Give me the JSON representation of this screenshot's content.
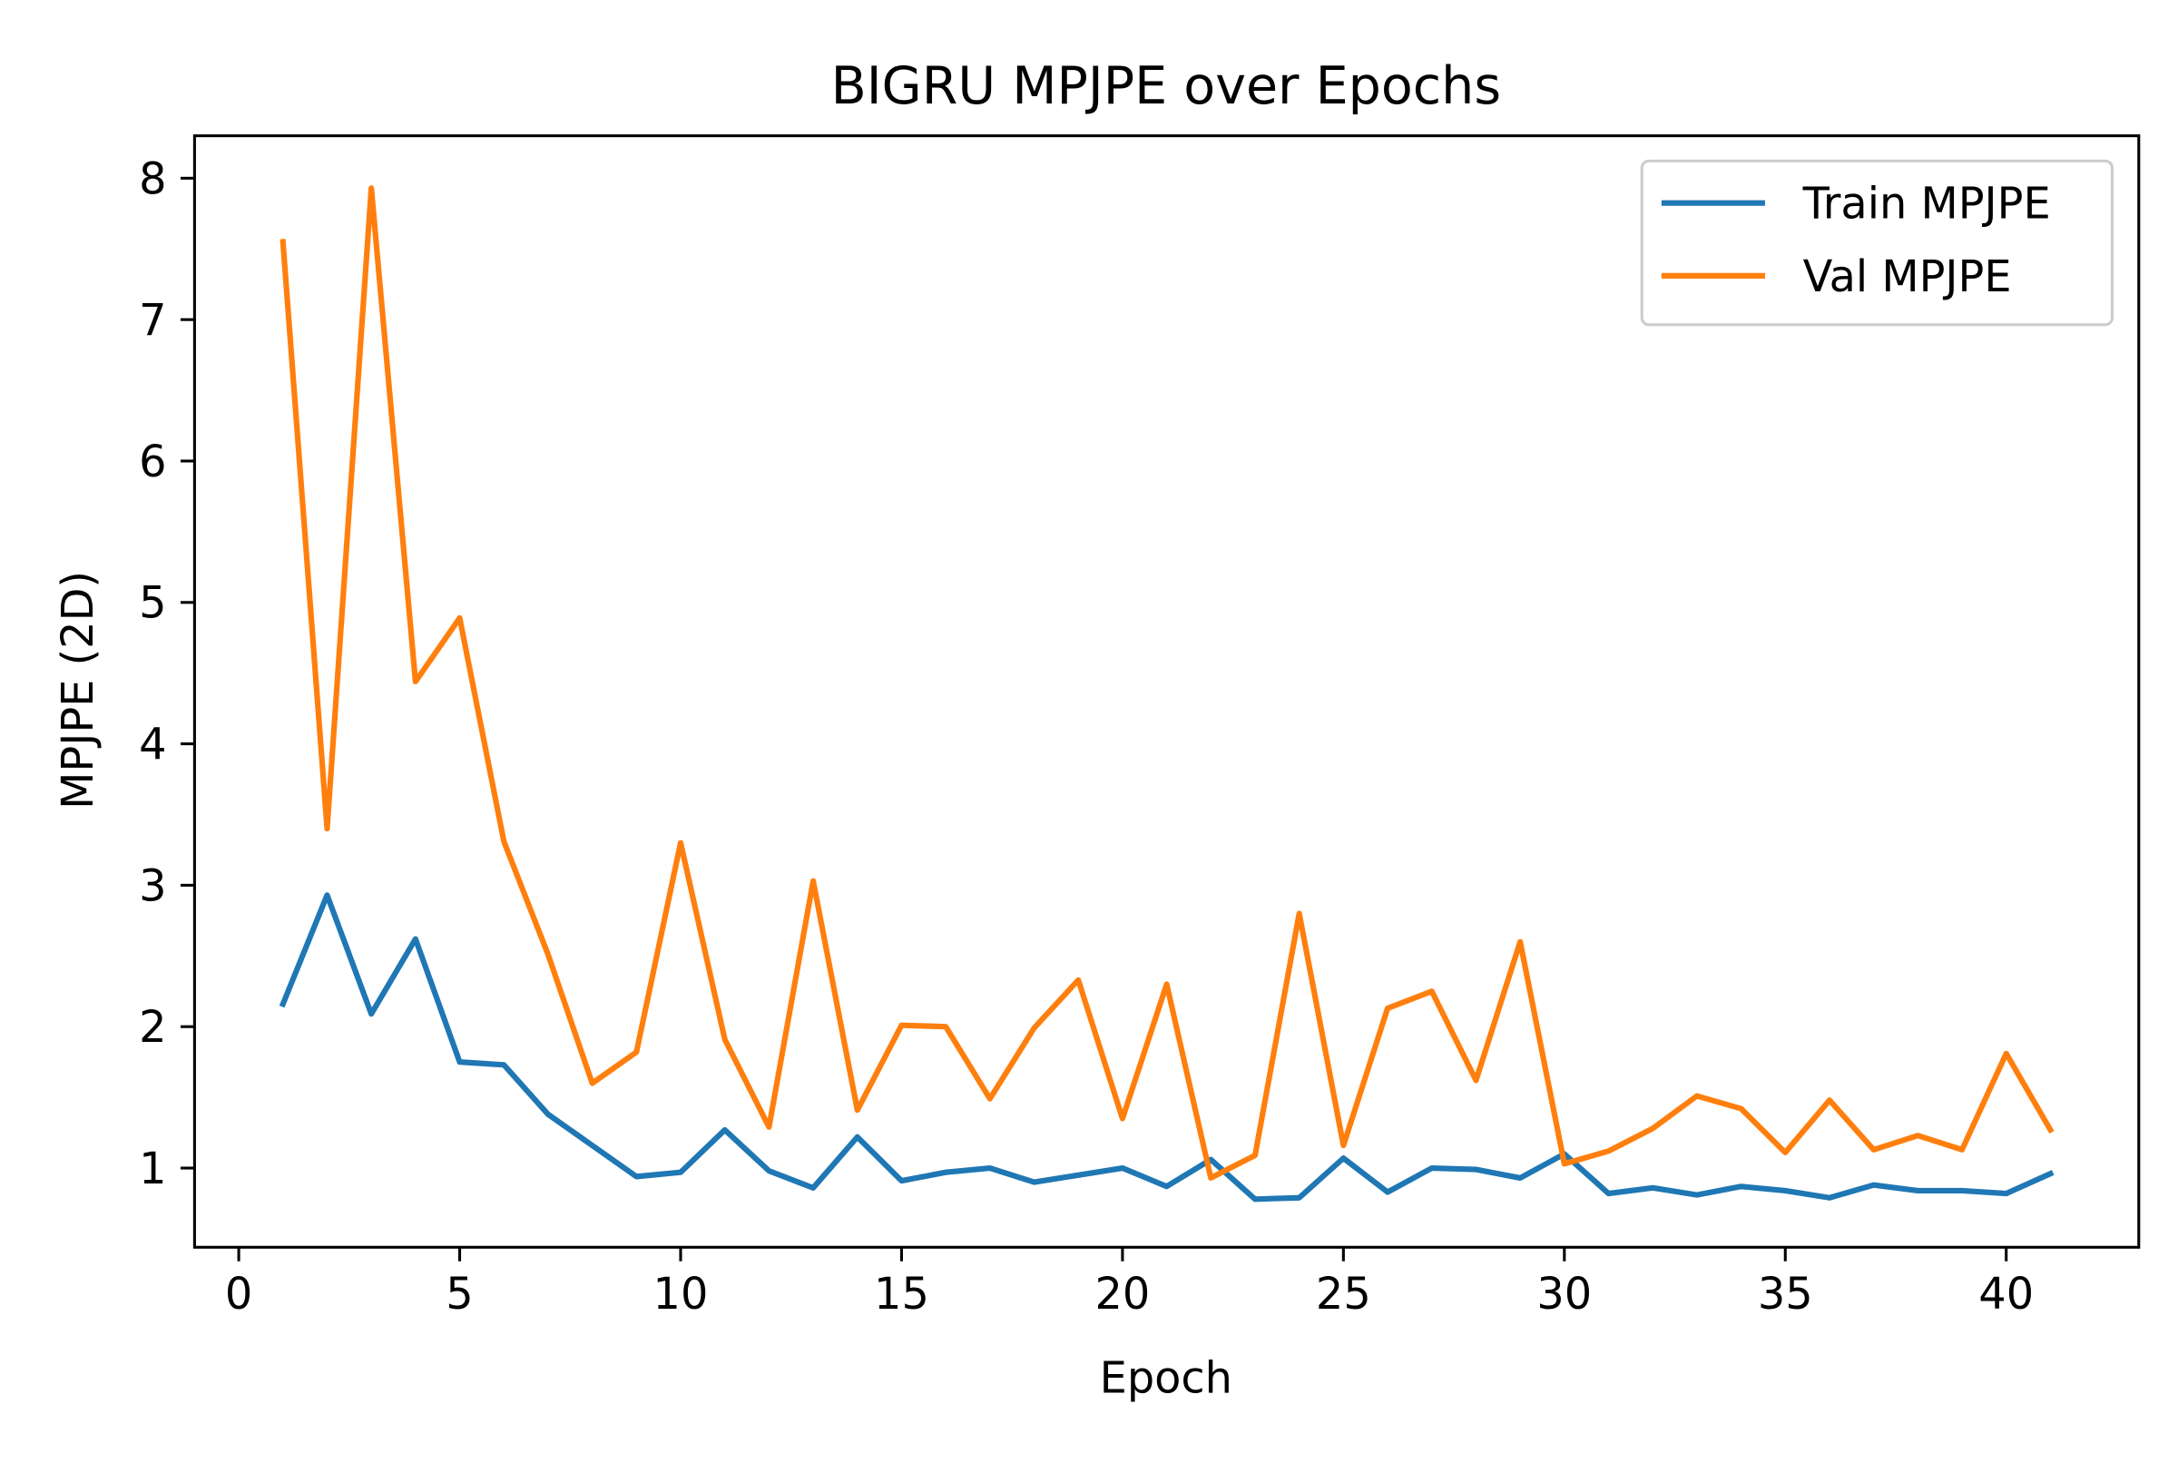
{
  "chart_data": {
    "type": "line",
    "title": "BIGRU MPJPE over Epochs",
    "xlabel": "Epoch",
    "ylabel": "MPJPE (2D)",
    "xlim": [
      -1,
      43
    ],
    "ylim": [
      0.44,
      8.3
    ],
    "xticks": [
      0,
      5,
      10,
      15,
      20,
      25,
      30,
      35,
      40
    ],
    "yticks": [
      1,
      2,
      3,
      4,
      5,
      6,
      7,
      8
    ],
    "grid": false,
    "legend_position": "top-right",
    "x": [
      1,
      2,
      3,
      4,
      5,
      6,
      7,
      8,
      9,
      10,
      11,
      12,
      13,
      14,
      15,
      16,
      17,
      18,
      19,
      20,
      21,
      22,
      23,
      24,
      25,
      26,
      27,
      28,
      29,
      30,
      31,
      32,
      33,
      34,
      35,
      36,
      37,
      38,
      39,
      40,
      41
    ],
    "series": [
      {
        "name": "Train MPJPE",
        "color": "#1f77b4",
        "values": [
          2.16,
          2.93,
          2.09,
          2.62,
          1.75,
          1.73,
          1.38,
          1.16,
          0.94,
          0.97,
          1.27,
          0.98,
          0.86,
          1.22,
          0.91,
          0.97,
          1.0,
          0.9,
          0.95,
          1.0,
          0.87,
          1.06,
          0.78,
          0.79,
          1.07,
          0.83,
          1.0,
          0.99,
          0.93,
          1.1,
          0.82,
          0.86,
          0.81,
          0.87,
          0.84,
          0.79,
          0.88,
          0.84,
          0.84,
          0.82,
          0.96
        ]
      },
      {
        "name": "Val MPJPE",
        "color": "#ff7f0e",
        "values": [
          7.55,
          3.4,
          7.93,
          4.44,
          4.89,
          3.31,
          2.51,
          1.6,
          1.82,
          3.3,
          1.91,
          1.29,
          3.03,
          1.41,
          2.01,
          2.0,
          1.49,
          1.99,
          2.33,
          1.35,
          2.3,
          0.93,
          1.09,
          2.8,
          1.16,
          2.13,
          2.25,
          1.62,
          2.6,
          1.03,
          1.12,
          1.28,
          1.51,
          1.42,
          1.11,
          1.48,
          1.13,
          1.23,
          1.13,
          1.81,
          1.27
        ]
      }
    ]
  }
}
